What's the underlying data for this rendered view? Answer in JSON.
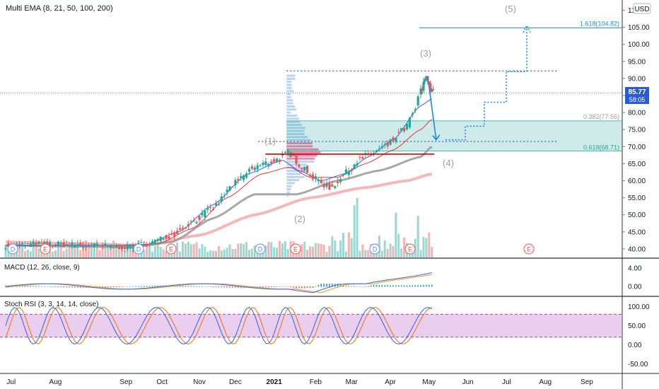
{
  "colors": {
    "bg": "#ffffff",
    "grid": "#f0f3fa",
    "up": "#26a69a",
    "down": "#ef5350",
    "ema8": "#2962ff",
    "ema21": "#e53935",
    "ema50": "#9e9e9e",
    "ema100": "#ef9a9a",
    "fib": "#26a69a",
    "target": "#1e88e5",
    "axis_text": "#131722",
    "rsi_band": "#e1bee7",
    "price_tag": "#2a5bd7",
    "wave": "#9e9e9e"
  },
  "header": {
    "indicator_main": "Multi EMA (8, 21, 50, 100, 200)",
    "indicator_macd": "MACD (12, 26, close, 9)",
    "indicator_rsi": "Stoch RSI (3, 3, 14, 14, close)",
    "currency_badge": "USD"
  },
  "price_tag": {
    "value": "85.77",
    "countdown": "58:05"
  },
  "chart_data": [
    {
      "type": "candlestick",
      "title": "Multi EMA (8, 21, 50, 100, 200)",
      "y_ticks": [
        40,
        45,
        50,
        55,
        60,
        65,
        70,
        75,
        80,
        85,
        90,
        95,
        100,
        105,
        110
      ],
      "ylim": [
        37.5,
        113
      ],
      "x_labels": [
        "Jul",
        "Aug",
        "Sep",
        "Oct",
        "Nov",
        "Dec",
        "2021",
        "Feb",
        "Mar",
        "Apr",
        "May",
        "Jun",
        "Jul",
        "Aug",
        "Sep"
      ],
      "close_anchors": [
        [
          0,
          41
        ],
        [
          30,
          41.5
        ],
        [
          60,
          41
        ],
        [
          90,
          40.5
        ],
        [
          105,
          42
        ],
        [
          120,
          44
        ],
        [
          135,
          48
        ],
        [
          150,
          52
        ],
        [
          165,
          59
        ],
        [
          180,
          64
        ],
        [
          195,
          66
        ],
        [
          205,
          68
        ],
        [
          215,
          64
        ],
        [
          225,
          60
        ],
        [
          235,
          58
        ],
        [
          245,
          62
        ],
        [
          255,
          66
        ],
        [
          265,
          68
        ],
        [
          275,
          70
        ],
        [
          285,
          74
        ],
        [
          290,
          76
        ],
        [
          295,
          80
        ],
        [
          300,
          86
        ],
        [
          304,
          91
        ],
        [
          308,
          85.77
        ]
      ],
      "ema_anchors": {
        "ema8": [
          [
            0,
            41
          ],
          [
            60,
            41
          ],
          [
            100,
            41
          ],
          [
            125,
            45
          ],
          [
            150,
            53
          ],
          [
            175,
            62
          ],
          [
            200,
            66
          ],
          [
            212,
            63
          ],
          [
            228,
            60
          ],
          [
            245,
            62
          ],
          [
            262,
            67
          ],
          [
            280,
            72
          ],
          [
            300,
            82
          ],
          [
            308,
            84
          ]
        ],
        "ema21": [
          [
            0,
            41
          ],
          [
            80,
            41
          ],
          [
            110,
            41.5
          ],
          [
            135,
            46
          ],
          [
            160,
            55
          ],
          [
            185,
            62
          ],
          [
            205,
            64
          ],
          [
            220,
            61
          ],
          [
            240,
            61
          ],
          [
            260,
            65
          ],
          [
            280,
            69
          ],
          [
            300,
            75
          ],
          [
            308,
            78
          ]
        ],
        "ema50": [
          [
            0,
            41
          ],
          [
            90,
            40.5
          ],
          [
            120,
            42
          ],
          [
            150,
            49
          ],
          [
            180,
            56
          ],
          [
            210,
            56
          ],
          [
            240,
            60
          ],
          [
            270,
            63
          ],
          [
            300,
            67
          ],
          [
            308,
            70
          ]
        ],
        "ema100": [
          [
            0,
            42
          ],
          [
            60,
            41.5
          ],
          [
            100,
            41
          ],
          [
            140,
            44
          ],
          [
            180,
            50
          ],
          [
            220,
            55
          ],
          [
            260,
            58
          ],
          [
            290,
            60
          ],
          [
            308,
            62
          ]
        ]
      },
      "annotations": {
        "wave_labels": [
          "(1)",
          "(2)",
          "(3)",
          "(4)",
          "(5)"
        ],
        "fib_levels": [
          {
            "label": "0.382(77.56)",
            "value": 77.56
          },
          {
            "label": "0.618(68.71)",
            "value": 68.71
          },
          {
            "label": "1.618(104.82)",
            "value": 104.82
          }
        ],
        "top_line": 92.2,
        "support_line": 71.5,
        "red_line": 67.8,
        "projection_target": 72,
        "last_price_line": 85.77
      },
      "event_markers": [
        "D",
        "E",
        "D",
        "E",
        "D",
        "E",
        "E"
      ]
    },
    {
      "type": "line",
      "title": "MACD (12, 26, close, 9)",
      "y_ticks": [
        "4.00",
        "0.00"
      ],
      "ylim": [
        -2,
        6
      ]
    },
    {
      "type": "line",
      "title": "Stoch RSI (3, 3, 14, 14, close)",
      "y_ticks": [
        "100.00",
        "50.00",
        "0.00",
        "-50.00"
      ],
      "ylim": [
        -75,
        125
      ],
      "bands": [
        20,
        80
      ]
    }
  ]
}
